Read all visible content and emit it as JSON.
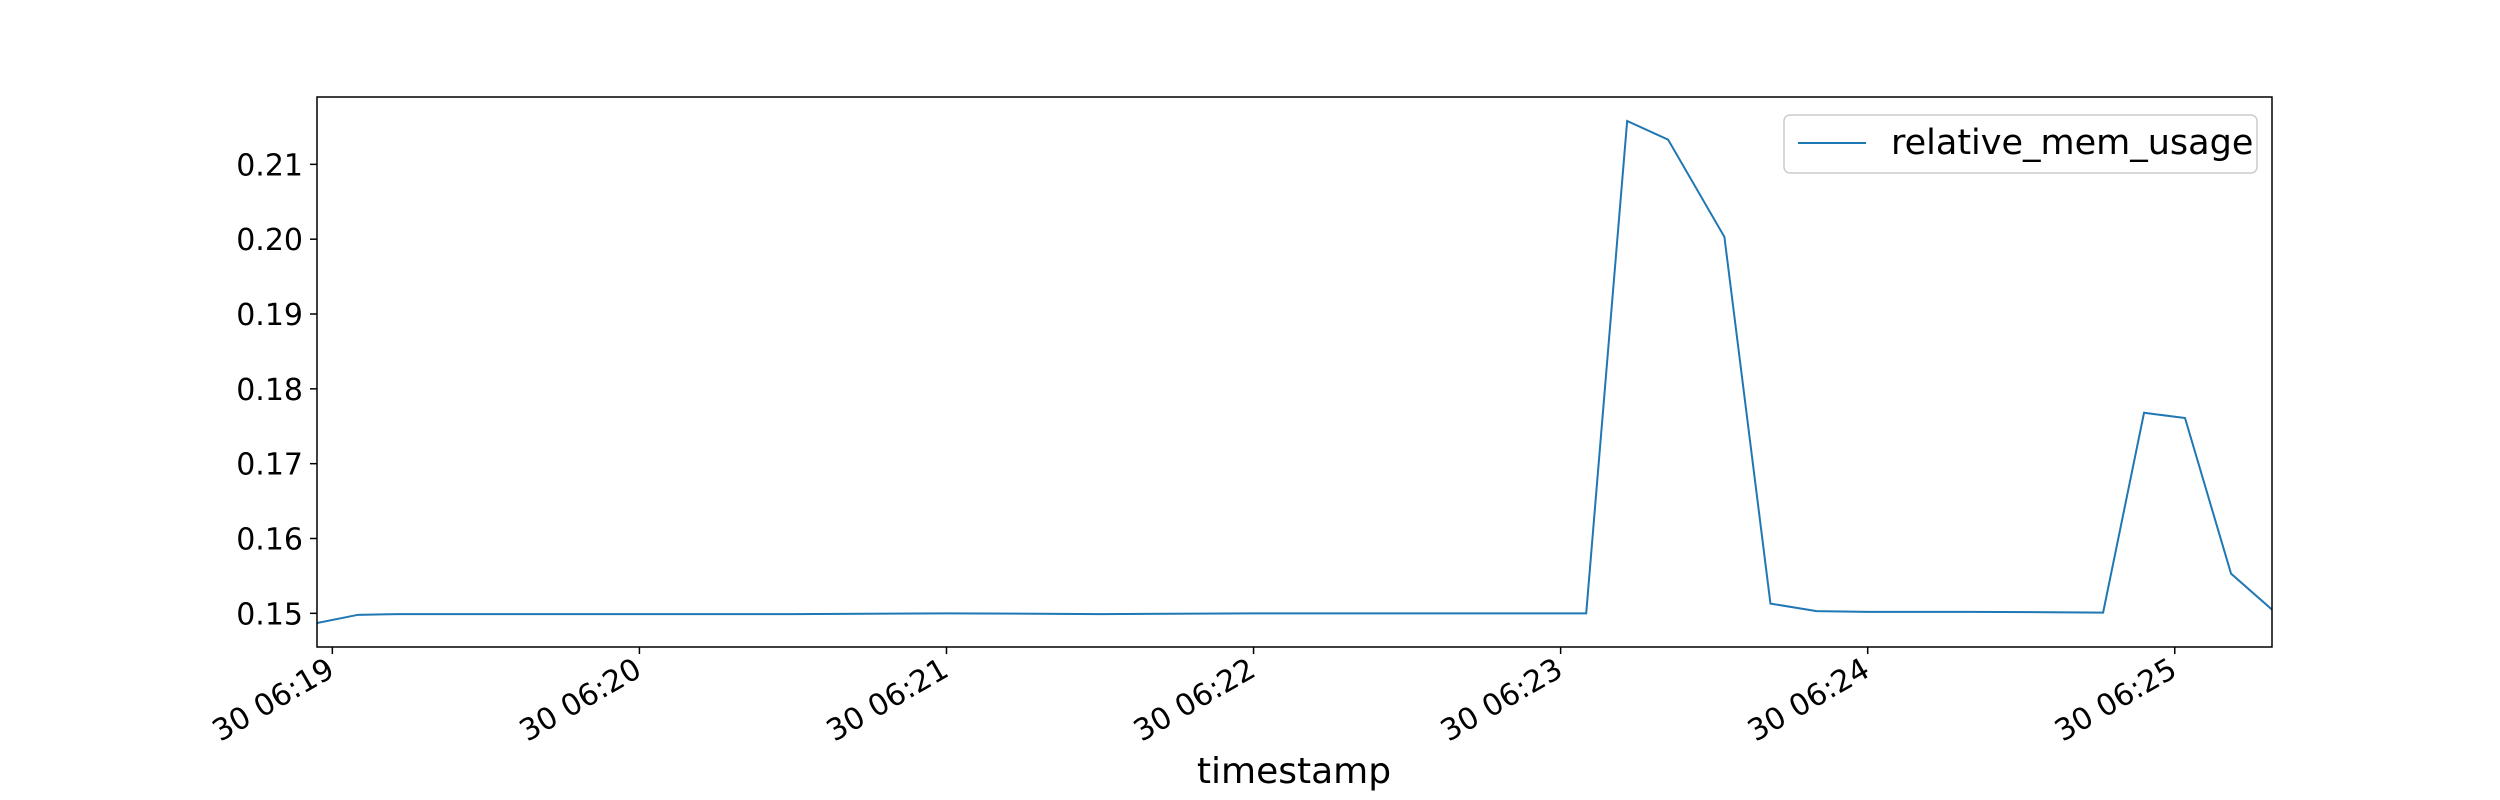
{
  "chart_data": {
    "type": "line",
    "title": "",
    "xlabel": "timestamp",
    "ylabel": "",
    "legend_position": "upper-right",
    "grid": false,
    "xlim": [
      "30 06:18:57",
      "30 06:25:19"
    ],
    "ylim": [
      0.1455,
      0.219
    ],
    "x_ticks": [
      "30 06:19",
      "30 06:20",
      "30 06:21",
      "30 06:22",
      "30 06:23",
      "30 06:24",
      "30 06:25"
    ],
    "y_ticks": [
      "0.15",
      "0.16",
      "0.17",
      "0.18",
      "0.19",
      "0.20",
      "0.21"
    ],
    "series": [
      {
        "name": "relative_mem_usage",
        "color": "#1f77b4",
        "x": [
          "30 06:18:57",
          "30 06:19:05",
          "30 06:19:13",
          "30 06:19:30",
          "30 06:20:00",
          "30 06:20:30",
          "30 06:21:00",
          "30 06:21:30",
          "30 06:22:00",
          "30 06:22:30",
          "30 06:23:05",
          "30 06:23:13",
          "30 06:23:21",
          "30 06:23:32",
          "30 06:23:41",
          "30 06:23:50",
          "30 06:24:00",
          "30 06:24:20",
          "30 06:24:46",
          "30 06:24:54",
          "30 06:25:02",
          "30 06:25:11",
          "30 06:25:19"
        ],
        "y": [
          0.1487,
          0.1498,
          0.1499,
          0.1499,
          0.1499,
          0.1499,
          0.15,
          0.1499,
          0.15,
          0.15,
          0.15,
          0.2158,
          0.2133,
          0.2003,
          0.1513,
          0.1503,
          0.1502,
          0.1502,
          0.1501,
          0.1768,
          0.1761,
          0.1553,
          0.1505
        ]
      }
    ]
  }
}
